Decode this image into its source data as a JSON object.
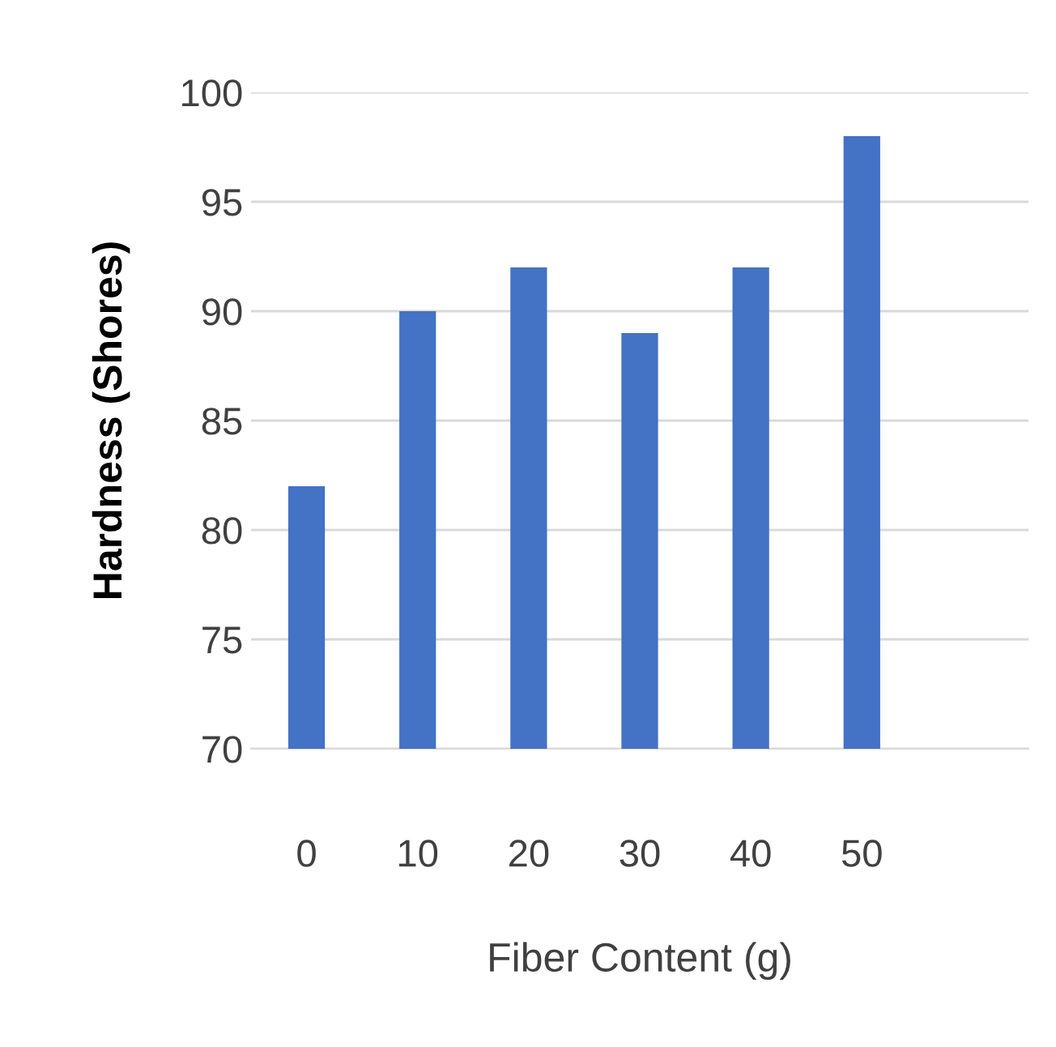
{
  "chart_data": {
    "type": "bar",
    "xlabel": "Fiber Content (g)",
    "ylabel": "Hardness (Shores)",
    "categories": [
      "0",
      "10",
      "20",
      "30",
      "40",
      "50",
      null
    ],
    "values": [
      82,
      90,
      92,
      89,
      92,
      98,
      null
    ],
    "color": "#4472c4",
    "ylim": [
      70,
      100
    ],
    "yticks": [
      70,
      75,
      80,
      85,
      90,
      95,
      100
    ],
    "grid": "y",
    "legend": false
  }
}
